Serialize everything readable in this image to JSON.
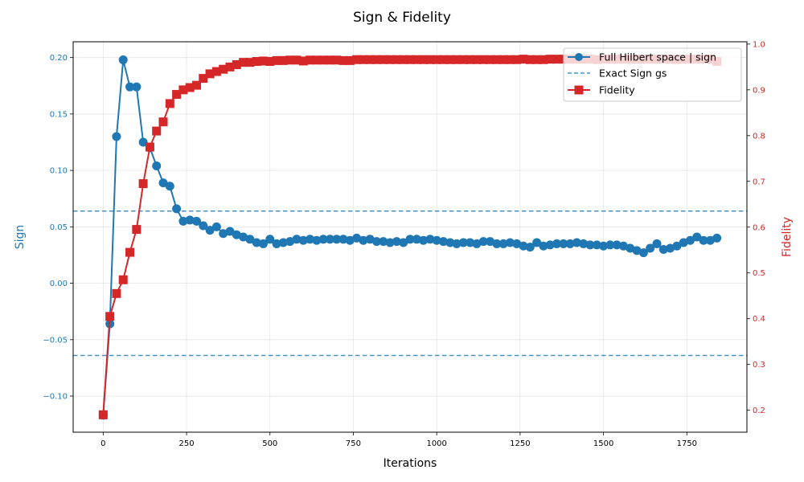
{
  "chart_data": {
    "type": "line",
    "title": "Sign & Fidelity",
    "xlabel": "Iterations",
    "ylabel_left": "Sign",
    "ylabel_right": "Fidelity",
    "xlim": [
      -90,
      1930
    ],
    "ylim_left": [
      -0.132,
      0.214
    ],
    "ylim_right": [
      0.152,
      1.005
    ],
    "grid": true,
    "legend_position": "top-right",
    "x_ticks": [
      0,
      250,
      500,
      750,
      1000,
      1250,
      1500,
      1750
    ],
    "x_tick_labels": [
      "0",
      "250",
      "500",
      "750",
      "1000",
      "1250",
      "1500",
      "1750"
    ],
    "y_left_ticks": [
      -0.1,
      -0.05,
      0.0,
      0.05,
      0.1,
      0.15,
      0.2
    ],
    "y_left_tick_labels": [
      "−0.10",
      "−0.05",
      "0.00",
      "0.05",
      "0.10",
      "0.15",
      "0.20"
    ],
    "y_right_ticks": [
      0.2,
      0.3,
      0.4,
      0.5,
      0.6,
      0.7,
      0.8,
      0.9,
      1.0
    ],
    "y_right_tick_labels": [
      "0.2",
      "0.3",
      "0.4",
      "0.5",
      "0.6",
      "0.7",
      "0.8",
      "0.9",
      "1.0"
    ],
    "colors": {
      "sign": "#1f77b4",
      "fidelity": "#d62728",
      "reference": "#1f77b4"
    },
    "x": [
      0,
      20,
      40,
      60,
      80,
      100,
      120,
      140,
      160,
      180,
      200,
      220,
      240,
      260,
      280,
      300,
      320,
      340,
      360,
      380,
      400,
      420,
      440,
      460,
      480,
      500,
      520,
      540,
      560,
      580,
      600,
      620,
      640,
      660,
      680,
      700,
      720,
      740,
      760,
      780,
      800,
      820,
      840,
      860,
      880,
      900,
      920,
      940,
      960,
      980,
      1000,
      1020,
      1040,
      1060,
      1080,
      1100,
      1120,
      1140,
      1160,
      1180,
      1200,
      1220,
      1240,
      1260,
      1280,
      1300,
      1320,
      1340,
      1360,
      1380,
      1400,
      1420,
      1440,
      1460,
      1480,
      1500,
      1520,
      1540,
      1560,
      1580,
      1600,
      1620,
      1640,
      1660,
      1680,
      1700,
      1720,
      1740,
      1760,
      1780,
      1800,
      1820,
      1840
    ],
    "series": [
      {
        "name": "Full Hilbert space | sign",
        "axis": "left",
        "marker": "circle",
        "values": [
          -0.117,
          -0.036,
          0.13,
          0.198,
          0.174,
          0.174,
          0.125,
          0.12,
          0.104,
          0.089,
          0.086,
          0.066,
          0.055,
          0.056,
          0.055,
          0.051,
          0.047,
          0.05,
          0.044,
          0.046,
          0.043,
          0.041,
          0.039,
          0.036,
          0.035,
          0.039,
          0.035,
          0.036,
          0.037,
          0.039,
          0.038,
          0.039,
          0.038,
          0.039,
          0.039,
          0.039,
          0.039,
          0.038,
          0.04,
          0.038,
          0.039,
          0.037,
          0.037,
          0.036,
          0.037,
          0.036,
          0.039,
          0.039,
          0.038,
          0.039,
          0.038,
          0.037,
          0.036,
          0.035,
          0.036,
          0.036,
          0.035,
          0.037,
          0.037,
          0.035,
          0.035,
          0.036,
          0.035,
          0.033,
          0.032,
          0.036,
          0.033,
          0.034,
          0.035,
          0.035,
          0.035,
          0.036,
          0.035,
          0.034,
          0.034,
          0.033,
          0.034,
          0.034,
          0.033,
          0.031,
          0.029,
          0.027,
          0.031,
          0.035,
          0.03,
          0.031,
          0.033,
          0.036,
          0.038,
          0.041,
          0.038,
          0.038,
          0.04
        ]
      },
      {
        "name": "Fidelity",
        "axis": "right",
        "marker": "square",
        "values": [
          0.19,
          0.405,
          0.455,
          0.485,
          0.545,
          0.595,
          0.695,
          0.775,
          0.81,
          0.83,
          0.87,
          0.89,
          0.9,
          0.905,
          0.91,
          0.925,
          0.935,
          0.94,
          0.945,
          0.95,
          0.955,
          0.96,
          0.96,
          0.962,
          0.963,
          0.962,
          0.964,
          0.964,
          0.965,
          0.965,
          0.963,
          0.965,
          0.965,
          0.965,
          0.965,
          0.965,
          0.964,
          0.964,
          0.966,
          0.966,
          0.966,
          0.966,
          0.966,
          0.966,
          0.966,
          0.966,
          0.966,
          0.966,
          0.966,
          0.966,
          0.966,
          0.966,
          0.966,
          0.966,
          0.966,
          0.966,
          0.966,
          0.966,
          0.966,
          0.966,
          0.966,
          0.966,
          0.966,
          0.967,
          0.966,
          0.966,
          0.966,
          0.967,
          0.967,
          0.967,
          0.967,
          0.967,
          0.967,
          0.967,
          0.966,
          0.967,
          0.967,
          0.967,
          0.967,
          0.967,
          0.967,
          0.967,
          0.967,
          0.967,
          0.967,
          0.967,
          0.966,
          0.967,
          0.967,
          0.967,
          0.967,
          0.967,
          0.962
        ]
      }
    ],
    "reference_lines": [
      {
        "name": "Exact Sign gs",
        "axis": "left",
        "style": "dashed",
        "values": [
          0.064,
          -0.064
        ]
      }
    ],
    "legend": [
      {
        "label": "Full Hilbert space | sign",
        "style": "line-circle",
        "color": "#1f77b4"
      },
      {
        "label": "Exact Sign gs",
        "style": "dashed",
        "color": "#1f77b4"
      },
      {
        "label": "Fidelity",
        "style": "line-square",
        "color": "#d62728"
      }
    ]
  }
}
